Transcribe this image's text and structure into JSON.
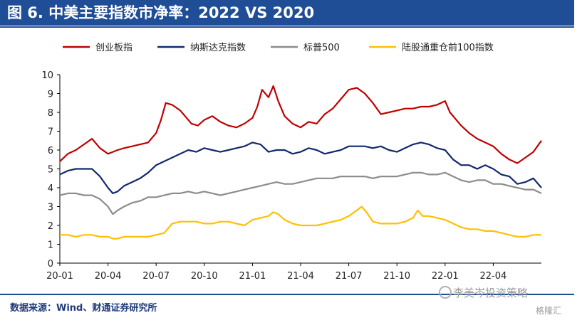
{
  "header": {
    "title": "图 6. 中美主要指数市净率：2022 VS 2020"
  },
  "footer": {
    "source": "数据来源：Wind、财通证券研究所",
    "watermark": "李美岑投资策略",
    "watermark2": "格隆汇"
  },
  "colors": {
    "title_bar": "#1f4e97"
  },
  "chart_data": {
    "type": "line",
    "title": "",
    "xlabel": "",
    "ylabel": "",
    "ylim": [
      0,
      10
    ],
    "yticks": [
      0,
      1,
      2,
      3,
      4,
      5,
      6,
      7,
      8,
      9,
      10
    ],
    "x_tick_labels": [
      "20-01",
      "20-04",
      "20-07",
      "20-10",
      "21-01",
      "21-04",
      "21-07",
      "21-10",
      "22-01",
      "22-04"
    ],
    "x_range": [
      0,
      30
    ],
    "x_tick_positions": [
      0,
      3,
      6,
      9,
      12,
      15,
      18,
      21,
      24,
      27
    ],
    "grid": false,
    "legend_position": "top",
    "series": [
      {
        "name": "创业板指",
        "color": "#c00000",
        "x": [
          0,
          0.5,
          1,
          1.5,
          2,
          2.5,
          3,
          3.3,
          3.6,
          4,
          4.5,
          5,
          5.5,
          6,
          6.3,
          6.6,
          7,
          7.5,
          7.8,
          8.2,
          8.6,
          9,
          9.5,
          10,
          10.5,
          11,
          11.5,
          12,
          12.3,
          12.6,
          13,
          13.3,
          13.6,
          14,
          14.5,
          15,
          15.5,
          16,
          16.5,
          17,
          17.5,
          18,
          18.5,
          19,
          19.5,
          20,
          20.5,
          21,
          21.5,
          22,
          22.5,
          23,
          23.5,
          24,
          24.3,
          24.6,
          25,
          25.5,
          26,
          26.5,
          27,
          27.5,
          28,
          28.5,
          29,
          29.5,
          30
        ],
        "values": [
          5.4,
          5.8,
          6.0,
          6.3,
          6.6,
          6.1,
          5.8,
          5.9,
          6.0,
          6.1,
          6.2,
          6.3,
          6.4,
          6.9,
          7.6,
          8.5,
          8.4,
          8.1,
          7.8,
          7.4,
          7.3,
          7.6,
          7.8,
          7.5,
          7.3,
          7.2,
          7.4,
          7.7,
          8.3,
          9.2,
          8.8,
          9.4,
          8.6,
          7.8,
          7.4,
          7.2,
          7.5,
          7.4,
          7.9,
          8.2,
          8.7,
          9.2,
          9.3,
          9.0,
          8.5,
          7.9,
          8.0,
          8.1,
          8.2,
          8.2,
          8.3,
          8.3,
          8.4,
          8.6,
          8.0,
          7.7,
          7.3,
          6.9,
          6.6,
          6.4,
          6.2,
          5.8,
          5.5,
          5.3,
          5.6,
          5.9,
          6.5
        ]
      },
      {
        "name": "纳斯达克指数",
        "color": "#14286e",
        "x": [
          0,
          0.5,
          1,
          1.5,
          2,
          2.5,
          3,
          3.3,
          3.6,
          4,
          4.5,
          5,
          5.5,
          6,
          6.5,
          7,
          7.5,
          8,
          8.5,
          9,
          9.5,
          10,
          10.5,
          11,
          11.5,
          12,
          12.5,
          13,
          13.5,
          14,
          14.5,
          15,
          15.5,
          16,
          16.5,
          17,
          17.5,
          18,
          18.5,
          19,
          19.5,
          20,
          20.5,
          21,
          21.5,
          22,
          22.5,
          23,
          23.5,
          24,
          24.5,
          25,
          25.5,
          26,
          26.5,
          27,
          27.5,
          28,
          28.5,
          29,
          29.5,
          30
        ],
        "values": [
          4.7,
          4.9,
          5.0,
          5.0,
          5.0,
          4.6,
          4.0,
          3.7,
          3.8,
          4.1,
          4.3,
          4.5,
          4.8,
          5.2,
          5.4,
          5.6,
          5.8,
          6.0,
          5.9,
          6.1,
          6.0,
          5.9,
          6.0,
          6.1,
          6.2,
          6.4,
          6.3,
          5.9,
          6.0,
          6.0,
          5.8,
          5.9,
          6.1,
          6.0,
          5.8,
          5.9,
          6.0,
          6.2,
          6.2,
          6.2,
          6.1,
          6.2,
          6.0,
          5.9,
          6.1,
          6.3,
          6.4,
          6.3,
          6.1,
          6.0,
          5.5,
          5.2,
          5.2,
          5.0,
          5.2,
          5.0,
          4.7,
          4.6,
          4.2,
          4.3,
          4.5,
          4.0
        ]
      },
      {
        "name": "标普500",
        "color": "#8c8c8c",
        "x": [
          0,
          0.5,
          1,
          1.5,
          2,
          2.5,
          3,
          3.3,
          3.6,
          4,
          4.5,
          5,
          5.5,
          6,
          6.5,
          7,
          7.5,
          8,
          8.5,
          9,
          9.5,
          10,
          10.5,
          11,
          11.5,
          12,
          12.5,
          13,
          13.5,
          14,
          14.5,
          15,
          15.5,
          16,
          16.5,
          17,
          17.5,
          18,
          18.5,
          19,
          19.5,
          20,
          20.5,
          21,
          21.5,
          22,
          22.5,
          23,
          23.5,
          24,
          24.5,
          25,
          25.5,
          26,
          26.5,
          27,
          27.5,
          28,
          28.5,
          29,
          29.5,
          30
        ],
        "values": [
          3.6,
          3.7,
          3.7,
          3.6,
          3.6,
          3.4,
          3.0,
          2.6,
          2.8,
          3.0,
          3.2,
          3.3,
          3.5,
          3.5,
          3.6,
          3.7,
          3.7,
          3.8,
          3.7,
          3.8,
          3.7,
          3.6,
          3.7,
          3.8,
          3.9,
          4.0,
          4.1,
          4.2,
          4.3,
          4.2,
          4.2,
          4.3,
          4.4,
          4.5,
          4.5,
          4.5,
          4.6,
          4.6,
          4.6,
          4.6,
          4.5,
          4.6,
          4.6,
          4.6,
          4.7,
          4.8,
          4.8,
          4.7,
          4.7,
          4.8,
          4.6,
          4.4,
          4.3,
          4.4,
          4.4,
          4.2,
          4.2,
          4.1,
          4.0,
          3.9,
          3.9,
          3.7
        ]
      },
      {
        "name": "陆股通重仓前100指数",
        "color": "#ffc000",
        "x": [
          0,
          0.5,
          1,
          1.5,
          2,
          2.5,
          3,
          3.3,
          3.6,
          4,
          4.5,
          5,
          5.5,
          6,
          6.5,
          7,
          7.5,
          8,
          8.5,
          9,
          9.5,
          10,
          10.5,
          11,
          11.5,
          12,
          12.5,
          13,
          13.3,
          13.6,
          14,
          14.5,
          15,
          15.5,
          16,
          16.5,
          17,
          17.5,
          18,
          18.5,
          18.8,
          19.1,
          19.5,
          20,
          20.5,
          21,
          21.5,
          22,
          22.3,
          22.6,
          23,
          23.5,
          24,
          24.5,
          25,
          25.5,
          26,
          26.5,
          27,
          27.5,
          28,
          28.5,
          29,
          29.5,
          30
        ],
        "values": [
          1.5,
          1.5,
          1.4,
          1.5,
          1.5,
          1.4,
          1.4,
          1.3,
          1.3,
          1.4,
          1.4,
          1.4,
          1.4,
          1.5,
          1.6,
          2.1,
          2.2,
          2.2,
          2.2,
          2.1,
          2.1,
          2.2,
          2.2,
          2.1,
          2.0,
          2.3,
          2.4,
          2.5,
          2.7,
          2.6,
          2.3,
          2.1,
          2.0,
          2.0,
          2.0,
          2.1,
          2.2,
          2.3,
          2.5,
          2.8,
          3.0,
          2.7,
          2.2,
          2.1,
          2.1,
          2.1,
          2.2,
          2.4,
          2.8,
          2.5,
          2.5,
          2.4,
          2.3,
          2.1,
          1.9,
          1.8,
          1.8,
          1.7,
          1.7,
          1.6,
          1.5,
          1.4,
          1.4,
          1.5,
          1.5
        ]
      }
    ]
  }
}
